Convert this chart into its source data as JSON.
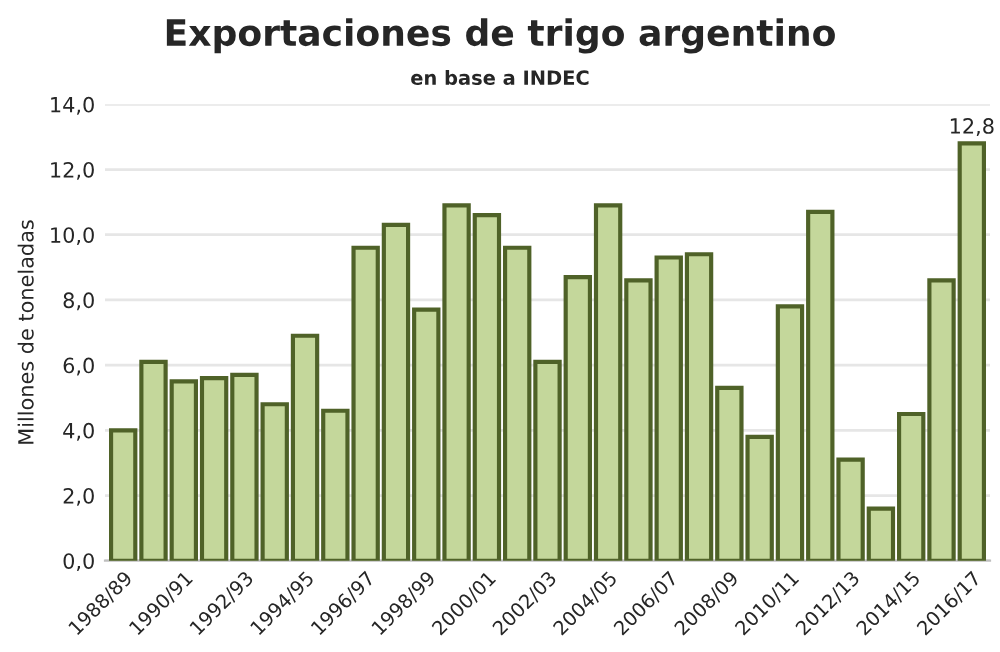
{
  "chart_data": {
    "type": "bar",
    "title": "Exportaciones de trigo argentino",
    "subtitle": "en base a INDEC",
    "ylabel": "Millones de toneladas",
    "categories": [
      "1988/89",
      null,
      "1990/91",
      null,
      "1992/93",
      null,
      "1994/95",
      null,
      "1996/97",
      null,
      "1998/99",
      null,
      "2000/01",
      null,
      "2002/03",
      null,
      "2004/05",
      null,
      "2006/07",
      null,
      "2008/09",
      null,
      "2010/11",
      null,
      "2012/13",
      null,
      "2014/15",
      null,
      "2016/17"
    ],
    "values": [
      4.0,
      6.1,
      5.5,
      5.6,
      5.7,
      4.8,
      6.9,
      4.6,
      9.6,
      10.3,
      7.7,
      10.9,
      10.6,
      9.6,
      6.1,
      8.7,
      10.9,
      8.6,
      9.3,
      9.4,
      5.3,
      3.8,
      7.8,
      10.7,
      3.1,
      1.6,
      4.5,
      8.6,
      12.8
    ],
    "value_labels": [
      null,
      null,
      null,
      null,
      null,
      null,
      null,
      null,
      null,
      null,
      null,
      null,
      null,
      null,
      null,
      null,
      null,
      null,
      null,
      null,
      null,
      null,
      null,
      null,
      null,
      null,
      null,
      null,
      "12,8"
    ],
    "color": "#c4d79b",
    "ylim": [
      0,
      14
    ],
    "yticks": [
      {
        "value": 0,
        "label": "0,0"
      },
      {
        "value": 2,
        "label": "2,0"
      },
      {
        "value": 4,
        "label": "4,0"
      },
      {
        "value": 6,
        "label": "6,0"
      },
      {
        "value": 8,
        "label": "8,0"
      },
      {
        "value": 10,
        "label": "10,0"
      },
      {
        "value": 12,
        "label": "12,0"
      },
      {
        "value": 14,
        "label": "14,0"
      }
    ],
    "grid": "y",
    "legend": false
  }
}
